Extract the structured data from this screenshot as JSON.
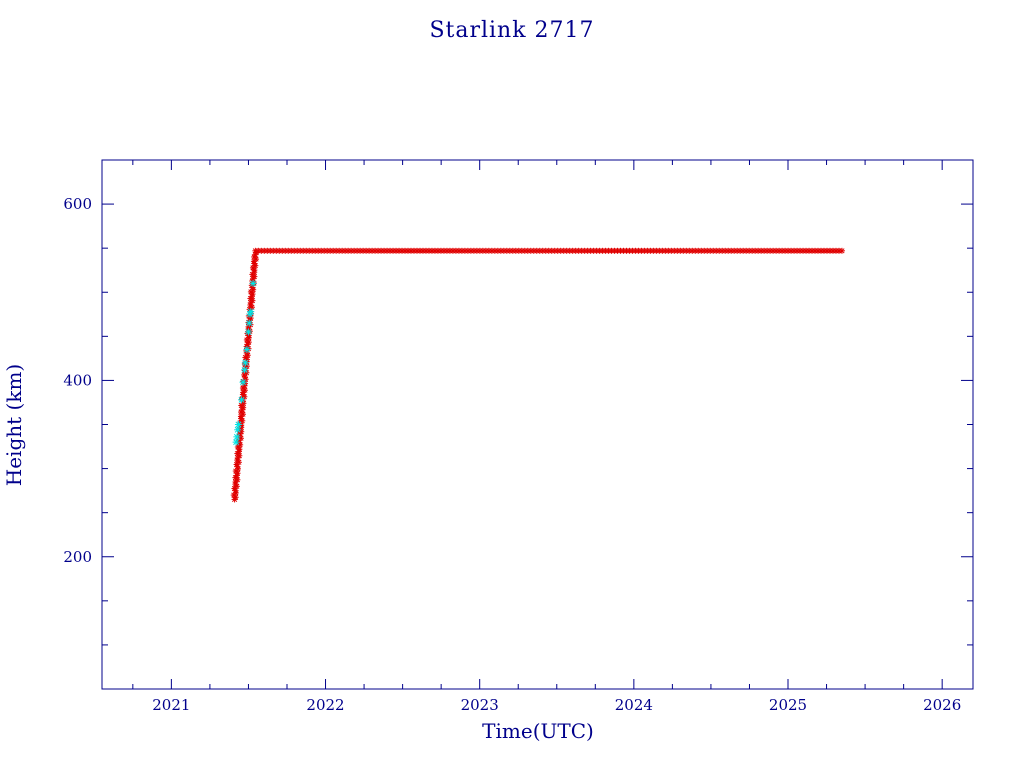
{
  "chart_data": {
    "type": "scatter",
    "title": "Starlink 2717",
    "xlabel": "Time(UTC)",
    "ylabel": "Height (km)",
    "xlim": [
      2020.55,
      2026.2
    ],
    "ylim": [
      50,
      650
    ],
    "x_ticks": [
      2021,
      2022,
      2023,
      2024,
      2025,
      2026
    ],
    "x_tick_labels": [
      "2021",
      "2022",
      "2023",
      "2024",
      "2025",
      "2026"
    ],
    "y_ticks": [
      200,
      400,
      600
    ],
    "y_tick_labels": [
      "200",
      "400",
      "600"
    ],
    "grid": false,
    "colors": {
      "axis": "#00008b",
      "primary": "#e00000",
      "secondary": "#00e5e5"
    },
    "series": [
      {
        "color": "#e00000",
        "marker": "asterisk",
        "segments": [
          {
            "x_start": 2021.41,
            "x_end": 2021.545,
            "y_start": 265,
            "y_end": 545
          },
          {
            "x_start": 2021.545,
            "x_end": 2025.35,
            "y_start": 547,
            "y_end": 547
          }
        ]
      },
      {
        "color": "#00e5e5",
        "marker": "asterisk",
        "points": [
          [
            2021.42,
            330
          ],
          [
            2021.425,
            336
          ],
          [
            2021.43,
            344
          ],
          [
            2021.435,
            350
          ],
          [
            2021.455,
            378
          ],
          [
            2021.465,
            398
          ],
          [
            2021.475,
            412
          ],
          [
            2021.48,
            420
          ],
          [
            2021.49,
            435
          ],
          [
            2021.5,
            455
          ],
          [
            2021.505,
            465
          ],
          [
            2021.51,
            475
          ],
          [
            2021.515,
            478
          ],
          [
            2021.53,
            510
          ]
        ]
      }
    ]
  }
}
